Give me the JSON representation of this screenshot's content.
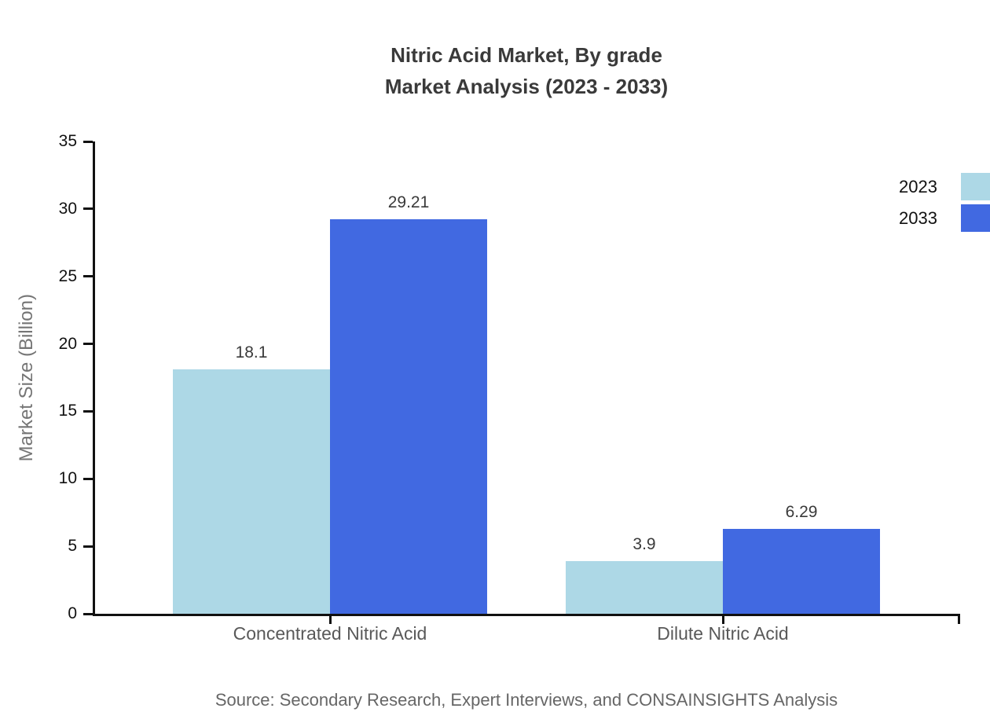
{
  "title": {
    "line1": "Nitric Acid Market, By grade",
    "line2": "Market Analysis (2023 - 2033)"
  },
  "source_note": "Source: Secondary Research, Expert Interviews, and CONSAINSIGHTS Analysis",
  "chart_data": {
    "type": "bar",
    "title": "Nitric Acid Market, By grade Market Analysis (2023 - 2033)",
    "categories": [
      "Concentrated Nitric Acid",
      "Dilute Nitric Acid"
    ],
    "series": [
      {
        "name": "2023",
        "color": "#ADD8E6",
        "values": [
          18.1,
          3.9
        ]
      },
      {
        "name": "2033",
        "color": "#4169E1",
        "values": [
          29.21,
          6.29
        ]
      }
    ],
    "value_labels": [
      [
        "18.1",
        "29.21"
      ],
      [
        "3.9",
        "6.29"
      ]
    ],
    "xlabel": "",
    "ylabel": "Market Size (Billion)",
    "ylim": [
      0,
      35
    ],
    "yticks": [
      0,
      5,
      10,
      15,
      20,
      25,
      30,
      35
    ],
    "grid": false,
    "legend_position": "upper-right",
    "axis_color": "#111111",
    "tick_label_color": "#111111",
    "category_label_color": "#595959",
    "value_label_color": "#3a3a3a"
  }
}
